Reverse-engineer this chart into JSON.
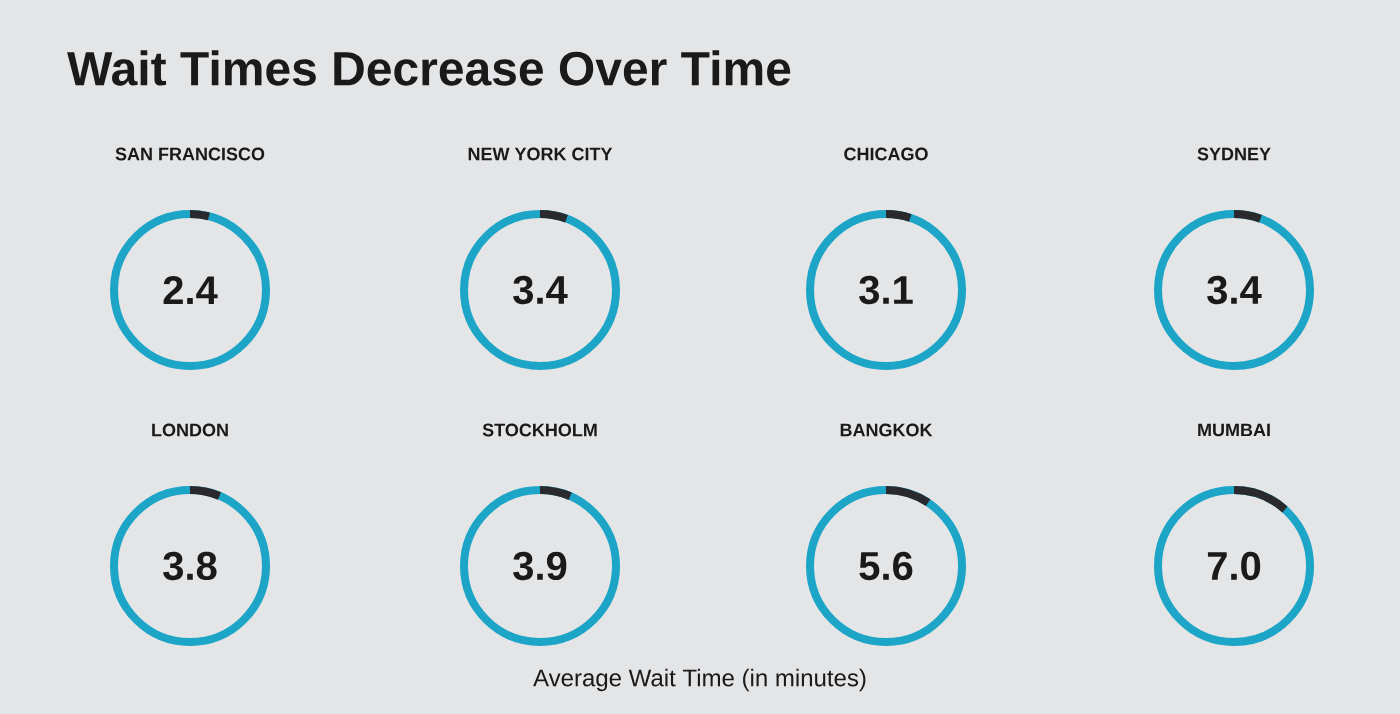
{
  "chart_data": {
    "type": "other",
    "title": "Wait Times Decrease Over Time",
    "categories": [
      "SAN FRANCISCO",
      "NEW YORK CITY",
      "CHICAGO",
      "SYDNEY",
      "LONDON",
      "STOCKHOLM",
      "BANGKOK",
      "MUMBAI"
    ],
    "values": [
      2.4,
      3.4,
      3.1,
      3.4,
      3.8,
      3.9,
      5.6,
      7.0
    ],
    "value_labels": [
      "2.4",
      "3.4",
      "3.1",
      "3.4",
      "3.8",
      "3.9",
      "5.6",
      "7.0"
    ],
    "color": "#1ca5c6",
    "xlabel": "Average Wait Time (in minutes)"
  }
}
